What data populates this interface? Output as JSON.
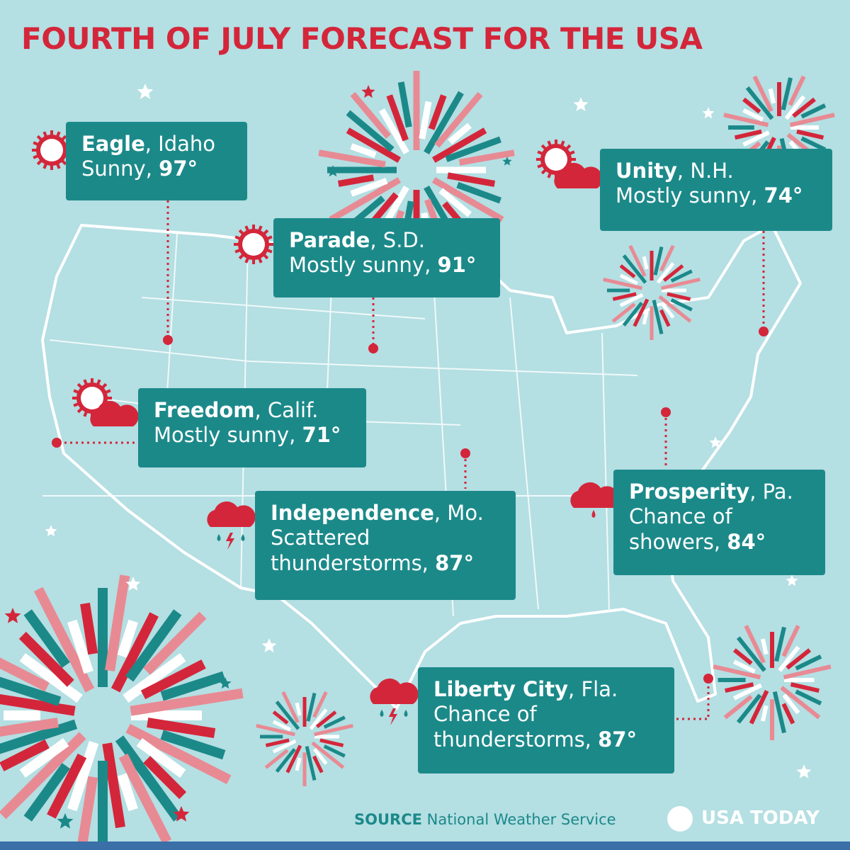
{
  "header": {
    "title": "FOURTH OF JULY FORECAST FOR THE USA"
  },
  "locations": [
    {
      "name": "Eagle",
      "place": ", Idaho",
      "forecast": "Sunny,",
      "temp": "97°"
    },
    {
      "name": "Parade",
      "place": ", S.D.",
      "forecast": "Mostly sunny,",
      "temp": "91°"
    },
    {
      "name": "Unity",
      "place": ", N.H.",
      "forecast": "Mostly sunny,",
      "temp": "74°"
    },
    {
      "name": "Freedom",
      "place": ", Calif.",
      "forecast": "Mostly sunny,",
      "temp": "71°"
    },
    {
      "name": "Independence",
      "place": ", Mo.",
      "forecast": "Scattered thunderstorms,",
      "temp": "87°"
    },
    {
      "name": "Prosperity",
      "place": ", Pa.",
      "forecast": "Chance of showers,",
      "temp": "84°"
    },
    {
      "name": "Liberty City",
      "place": ", Fla.",
      "forecast": "Chance of thunderstorms,",
      "temp": "87°"
    }
  ],
  "footer": {
    "source_label": "SOURCE",
    "source": "National Weather Service",
    "brand": "USA TODAY"
  }
}
